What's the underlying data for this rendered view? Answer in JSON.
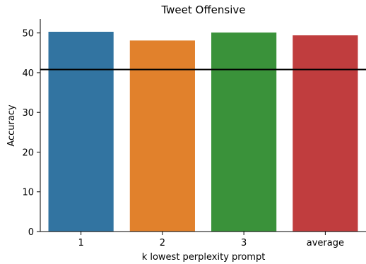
{
  "chart_data": {
    "type": "bar",
    "title": "Tweet Offensive",
    "xlabel": "k lowest perplexity prompt",
    "ylabel": "Accuracy",
    "categories": [
      "1",
      "2",
      "3",
      "average"
    ],
    "values": [
      50.3,
      48.1,
      50.1,
      49.4
    ],
    "colors": [
      "#3274a1",
      "#e1812c",
      "#3a923a",
      "#c03d3e"
    ],
    "ylim": [
      0,
      53.5
    ],
    "yticks": [
      0,
      10,
      20,
      30,
      40,
      50
    ],
    "reference_line": {
      "y": 40.8,
      "color": "#000000"
    },
    "grid": false,
    "legend": "none"
  }
}
